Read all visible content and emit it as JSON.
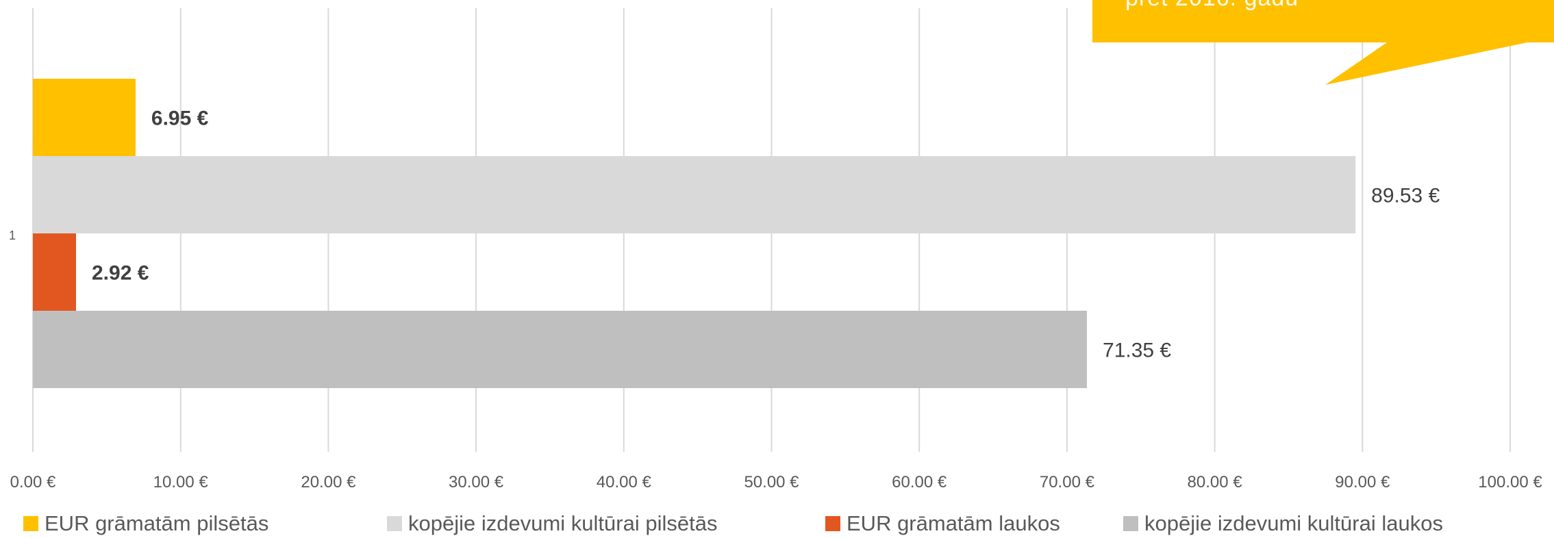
{
  "chart_data": {
    "type": "bar",
    "orientation": "horizontal",
    "categories": [
      "1"
    ],
    "series": [
      {
        "name": "EUR grāmatām pilsētās",
        "values": [
          6.95
        ],
        "color": "#FFC000",
        "label": "6.95 €",
        "label_bold": true
      },
      {
        "name": "kopējie izdevumi kultūrai pilsētās",
        "values": [
          89.53
        ],
        "color": "#D9D9D9",
        "label": "89.53 €",
        "label_bold": false
      },
      {
        "name": "EUR grāmatām laukos",
        "values": [
          2.92
        ],
        "color": "#E2571F",
        "label": "2.92 €",
        "label_bold": true
      },
      {
        "name": "kopējie izdevumi kultūrai laukos",
        "values": [
          71.35
        ],
        "color": "#BFBFBF",
        "label": "71.35 €",
        "label_bold": false
      }
    ],
    "xlim": [
      0,
      100
    ],
    "xticks": [
      "0.00 €",
      "10.00 €",
      "20.00 €",
      "30.00 €",
      "40.00 €",
      "50.00 €",
      "60.00 €",
      "70.00 €",
      "80.00 €",
      "90.00 €",
      "100.00 €"
    ],
    "grid": true,
    "legend_position": "bottom"
  },
  "callout": {
    "text": "pret 2016. gadu",
    "color": "#FFC000"
  }
}
